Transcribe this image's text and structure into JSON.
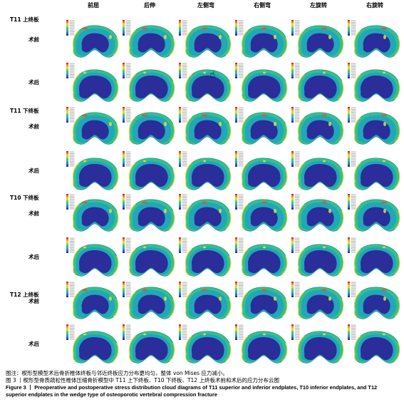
{
  "columns": [
    "前屈",
    "后伸",
    "左侧弯",
    "右侧弯",
    "左旋转",
    "右旋转"
  ],
  "sections": [
    {
      "label": "T11 上终板",
      "rows": [
        "术前",
        "术后"
      ]
    },
    {
      "label": "T11 下终板",
      "rows": [
        "术前",
        "术后"
      ]
    },
    {
      "label": "T10 下终板",
      "rows": [
        "术前",
        "术后"
      ]
    },
    {
      "label": "T12 上终板",
      "rows": [
        "术前",
        "术后"
      ]
    }
  ],
  "section_labels": [
    "T11 上终板",
    "T11 下终板",
    "T10 下终板",
    "T12 上终板"
  ],
  "legend_colors": [
    "#e8261c",
    "#f07a1a",
    "#f2c41d",
    "#c9e02a",
    "#7ad43a",
    "#33c37a",
    "#22b3a8",
    "#1e8fc8",
    "#1d5bbf",
    "#24309c"
  ],
  "mesh_colors": {
    "core": "#2a2d9a",
    "mid": "#21a7b8",
    "outer": "#36c08a",
    "rim": "#e2e23a",
    "hot": "#e8502a"
  },
  "caption": {
    "note": "图注：楔形型模型术后骨折椎体终板与邻近终板应力分布更均匀，整体 von Mises 应力减小。",
    "title_cn": "图 3 丨楔形型骨质疏松性椎体压缩骨折模型中 T11 上下终板、T10 下终板、T12 上终板术前和术后的应力分布云图",
    "title_en": "Figure 3 丨 Preoperative and postoperative stress distribution cloud diagrams of T11 superior and inferior endplates, T10 inferior endplates, and T12 superior endplates in the wedge type of osteoporotic vertebral compression fracture"
  },
  "cursor_icon": "hand-pointer-icon"
}
